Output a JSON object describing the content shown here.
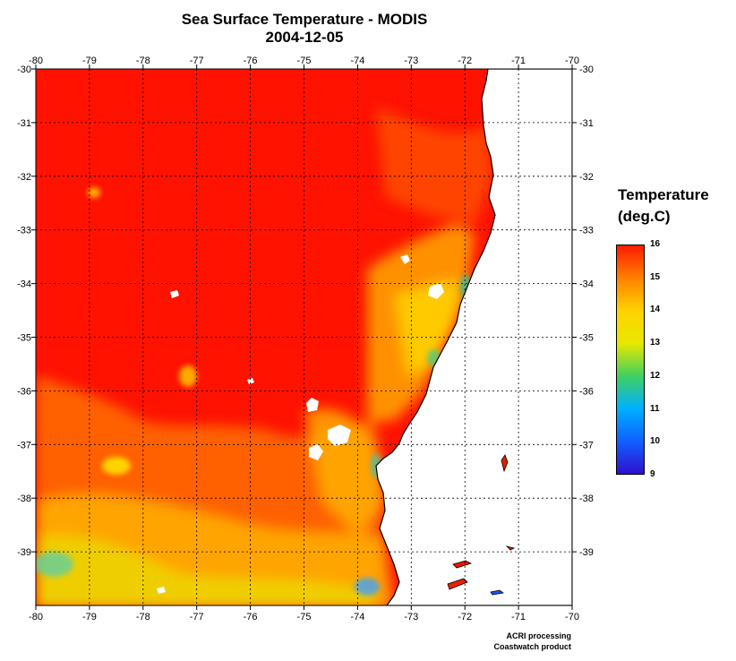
{
  "header": {
    "title": "Sea Surface Temperature - MODIS",
    "date": "2004-12-05"
  },
  "map": {
    "lon_ticks": [
      "-80",
      "-79",
      "-78",
      "-77",
      "-76",
      "-75",
      "-74",
      "-73",
      "-72",
      "-71",
      "-70"
    ],
    "lat_ticks": [
      "-30",
      "-31",
      "-32",
      "-33",
      "-34",
      "-35",
      "-36",
      "-37",
      "-38",
      "-39"
    ],
    "lon_range": [
      -80,
      -70
    ],
    "lat_range": [
      -40,
      -30
    ],
    "land_color": "#ffffff",
    "grid": "dotted"
  },
  "legend": {
    "title_line1": "Temperature",
    "title_line2": "(deg.C)",
    "ticks": [
      "16",
      "15",
      "14",
      "13",
      "12",
      "11",
      "10",
      "9"
    ],
    "colors": [
      "#ff1a00",
      "#ff8000",
      "#ffd200",
      "#e8e800",
      "#40d060",
      "#00b0ff",
      "#1060ff",
      "#3010d0"
    ]
  },
  "credits": {
    "line1": "ACRI processing",
    "line2": "Coastwatch product"
  }
}
